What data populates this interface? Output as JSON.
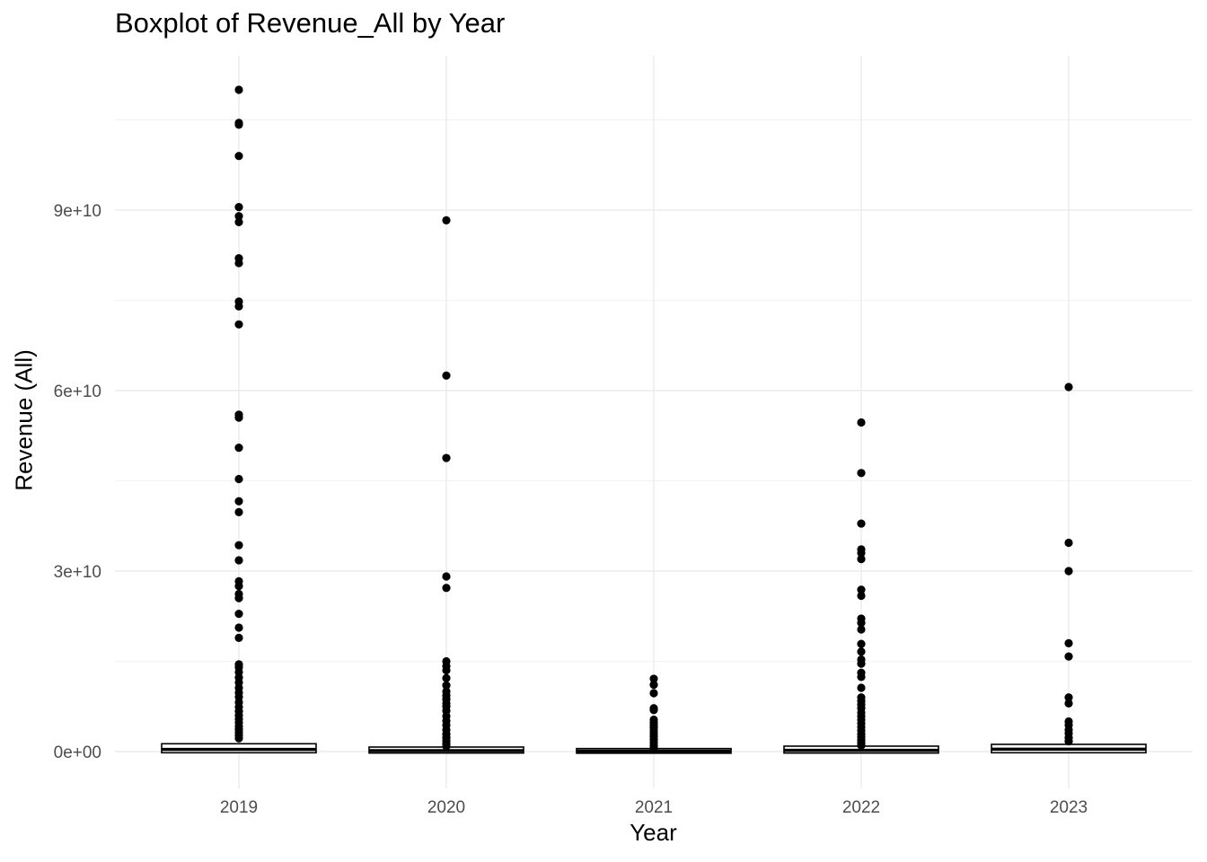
{
  "chart_data": {
    "type": "boxplot",
    "title": "Boxplot of Revenue_All by Year",
    "xlabel": "Year",
    "ylabel": "Revenue (All)",
    "ylim": [
      -9000000000,
      112000000000
    ],
    "y_ticks": [
      {
        "value": 0,
        "label": "0e+00"
      },
      {
        "value": 30000000000,
        "label": "3e+10"
      },
      {
        "value": 60000000000,
        "label": "6e+10"
      },
      {
        "value": 90000000000,
        "label": "9e+10"
      }
    ],
    "grid": true,
    "legend": "none",
    "categories": [
      "2019",
      "2020",
      "2021",
      "2022",
      "2023"
    ],
    "boxes": [
      {
        "category": "2019",
        "q1": 100000000,
        "median": 350000000,
        "q3": 1000000000,
        "outliers": [
          110000000000,
          104500000000,
          104200000000,
          99000000000,
          90500000000,
          89000000000,
          88000000000,
          82000000000,
          81200000000,
          74800000000,
          74000000000,
          71000000000,
          56000000000,
          55500000000,
          50500000000,
          45300000000,
          41600000000,
          39800000000,
          34300000000,
          31800000000,
          28300000000,
          27500000000,
          26200000000,
          25500000000,
          22900000000,
          20600000000,
          18900000000,
          14500000000,
          14000000000,
          13200000000,
          12300000000,
          11500000000,
          10600000000,
          9800000000,
          9100000000,
          8200000000,
          7400000000,
          6700000000,
          6000000000,
          5400000000,
          4800000000,
          4200000000,
          3700000000,
          3200000000,
          2700000000,
          2200000000
        ]
      },
      {
        "category": "2020",
        "q1": 50000000,
        "median": 150000000,
        "q3": 450000000,
        "outliers": [
          88300000000,
          62500000000,
          48800000000,
          29100000000,
          27200000000,
          15000000000,
          14200000000,
          13500000000,
          12200000000,
          11000000000,
          10000000000,
          9300000000,
          8700000000,
          8000000000,
          7500000000,
          6800000000,
          5900000000,
          5100000000,
          4400000000,
          3600000000,
          2900000000,
          2300000000,
          1800000000,
          1300000000,
          900000000
        ]
      },
      {
        "category": "2021",
        "q1": 20000000,
        "median": 80000000,
        "q3": 200000000,
        "outliers": [
          12100000000,
          11100000000,
          9700000000,
          7200000000,
          6900000000,
          5300000000,
          4800000000,
          4400000000,
          4000000000,
          3500000000,
          3000000000,
          2500000000,
          2000000000,
          1500000000,
          1000000000,
          600000000
        ]
      },
      {
        "category": "2022",
        "q1": 50000000,
        "median": 200000000,
        "q3": 600000000,
        "outliers": [
          54700000000,
          46300000000,
          37900000000,
          33600000000,
          33000000000,
          32000000000,
          26900000000,
          25900000000,
          22100000000,
          21400000000,
          20300000000,
          17900000000,
          16600000000,
          15300000000,
          14600000000,
          13100000000,
          12400000000,
          10600000000,
          9000000000,
          8400000000,
          7800000000,
          7200000000,
          6500000000,
          5900000000,
          5300000000,
          4700000000,
          4100000000,
          3500000000,
          2900000000,
          2400000000,
          1900000000,
          1400000000,
          1000000000
        ]
      },
      {
        "category": "2023",
        "q1": 100000000,
        "median": 400000000,
        "q3": 900000000,
        "outliers": [
          60600000000,
          34700000000,
          30000000000,
          18000000000,
          15800000000,
          9000000000,
          8000000000,
          5000000000,
          4400000000,
          3600000000,
          3000000000,
          2300000000,
          1700000000
        ]
      }
    ]
  }
}
